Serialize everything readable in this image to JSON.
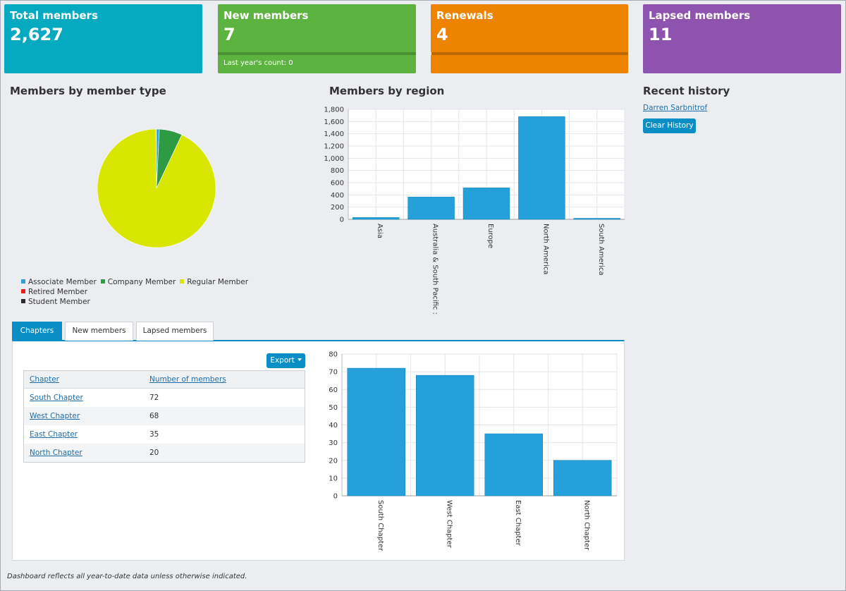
{
  "tiles": {
    "total": {
      "title": "Total members",
      "value": "2,627"
    },
    "new": {
      "title": "New members",
      "value": "7",
      "sub": "Last year's count: 0",
      "progress": 1.0
    },
    "renewals": {
      "title": "Renewals",
      "value": "4",
      "progress": 0.005
    },
    "lapsed": {
      "title": "Lapsed members",
      "value": "11"
    }
  },
  "sections": {
    "member_type_title": "Members by member type",
    "region_title": "Members by region",
    "history_title": "Recent history"
  },
  "history": {
    "items": [
      "Darren Sarbnitrof"
    ],
    "clear_label": "Clear History"
  },
  "tabs": [
    "Chapters",
    "New members",
    "Lapsed members"
  ],
  "export_label": "Export",
  "chapter_table": {
    "headers": [
      "Chapter",
      "Number of members"
    ],
    "rows": [
      [
        "South Chapter",
        "72"
      ],
      [
        "West Chapter",
        "68"
      ],
      [
        "East Chapter",
        "35"
      ],
      [
        "North Chapter",
        "20"
      ]
    ]
  },
  "footer_note": "Dashboard reflects all year-to-date data unless otherwise indicated.",
  "chart_data": [
    {
      "type": "pie",
      "categories": [
        "Associate Member",
        "Company Member",
        "Regular Member",
        "Retired Member",
        "Student Member"
      ],
      "values": [
        20,
        165,
        2437,
        0,
        5
      ],
      "colors": [
        "#2f9fd8",
        "#2e9a44",
        "#d9e600",
        "#e02020",
        "#2b2b2b"
      ],
      "legend": "bottom"
    },
    {
      "type": "bar",
      "categories": [
        "Asia",
        "Australia & South Pacific :",
        "Europe",
        "North America",
        "South America"
      ],
      "values": [
        30,
        365,
        515,
        1680,
        12
      ],
      "ylim": [
        0,
        1800
      ],
      "yticks": [
        "0",
        "200",
        "400",
        "600",
        "800",
        "1,000",
        "1,200",
        "1,400",
        "1,600",
        "1,800"
      ],
      "color": "#25a0da",
      "grid": true
    },
    {
      "type": "bar",
      "categories": [
        "South Chapter",
        "West Chapter",
        "East Chapter",
        "North Chapter"
      ],
      "values": [
        72,
        68,
        35,
        20
      ],
      "ylim": [
        0,
        80
      ],
      "yticks": [
        "0",
        "10",
        "20",
        "30",
        "40",
        "50",
        "60",
        "70",
        "80"
      ],
      "color": "#25a0da",
      "grid": true
    }
  ]
}
